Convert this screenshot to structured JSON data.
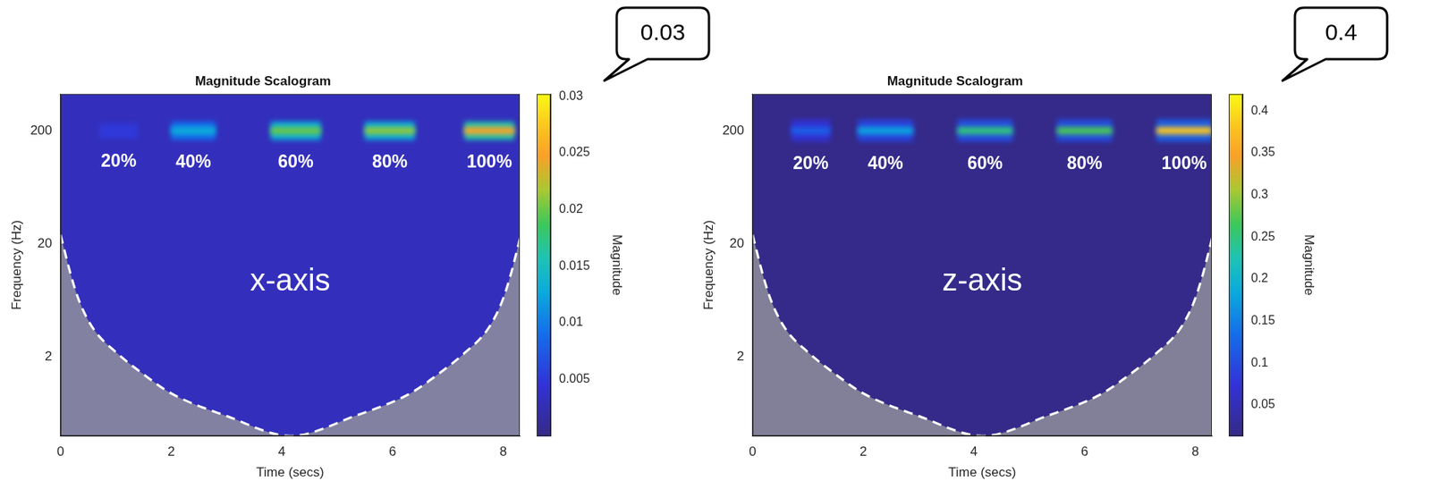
{
  "chart_data": [
    {
      "type": "heatmap",
      "title": "Magnitude Scalogram",
      "x_label": "Time (secs)",
      "y_label": "Frequency (Hz)",
      "annotation": "x-axis",
      "callout": "0.03",
      "log": "y",
      "grid": false,
      "xlim": [
        0,
        8.3
      ],
      "xticks": [
        0,
        2,
        4,
        6,
        8
      ],
      "ylim": [
        0.4,
        420
      ],
      "yticks": [
        2,
        20,
        200
      ],
      "colorbar": {
        "label": "Magnitude",
        "range": [
          0,
          0.0302
        ],
        "ticks": [
          0.005,
          0.01,
          0.015,
          0.02,
          0.025,
          0.03
        ]
      },
      "background": 0.003,
      "bursts": [
        {
          "label": "20%",
          "cells": [
            {
              "t": [
                0.7,
                1.4
              ],
              "f": [
                170,
                230
              ],
              "value": 0.005
            }
          ]
        },
        {
          "label": "40%",
          "cells": [
            {
              "t": [
                2.0,
                2.8
              ],
              "f": [
                165,
                240
              ],
              "value": 0.009
            },
            {
              "t": [
                2.0,
                2.8
              ],
              "f": [
                185,
                215
              ],
              "value": 0.013
            }
          ]
        },
        {
          "label": "60%",
          "cells": [
            {
              "t": [
                3.8,
                4.7
              ],
              "f": [
                165,
                240
              ],
              "value": 0.013
            },
            {
              "t": [
                3.8,
                4.7
              ],
              "f": [
                185,
                215
              ],
              "value": 0.02
            }
          ]
        },
        {
          "label": "80%",
          "cells": [
            {
              "t": [
                5.5,
                6.4
              ],
              "f": [
                165,
                240
              ],
              "value": 0.013
            },
            {
              "t": [
                5.5,
                6.4
              ],
              "f": [
                185,
                215
              ],
              "value": 0.021
            }
          ]
        },
        {
          "label": "100%",
          "cells": [
            {
              "t": [
                7.3,
                8.2
              ],
              "f": [
                165,
                240
              ],
              "value": 0.016
            },
            {
              "t": [
                7.3,
                8.2
              ],
              "f": [
                185,
                215
              ],
              "value": 0.025
            }
          ]
        }
      ],
      "coi": {
        "line_style": "dashed",
        "x": [
          0,
          0.2,
          0.35,
          0.6,
          1,
          1.5,
          2,
          3,
          4.16,
          5.32,
          6.32,
          6.82,
          7.32,
          7.72,
          7.97,
          8.12,
          8.32
        ],
        "y": [
          24,
          10,
          6,
          3.5,
          2.2,
          1.4,
          0.95,
          0.6,
          0.4,
          0.6,
          0.95,
          1.4,
          2.2,
          3.5,
          6,
          10,
          24
        ]
      }
    },
    {
      "type": "heatmap",
      "title": "Magnitude Scalogram",
      "x_label": "Time (secs)",
      "y_label": "Frequency (Hz)",
      "annotation": "z-axis",
      "callout": "0.4",
      "log": "y",
      "grid": false,
      "xlim": [
        0,
        8.3
      ],
      "xticks": [
        0,
        2,
        4,
        6,
        8
      ],
      "ylim": [
        0.4,
        420
      ],
      "yticks": [
        2,
        20,
        200
      ],
      "colorbar": {
        "label": "Magnitude",
        "range": [
          0.013,
          0.42
        ],
        "ticks": [
          0.05,
          0.1,
          0.15,
          0.2,
          0.25,
          0.3,
          0.35,
          0.4
        ]
      },
      "background": 0.015,
      "bursts": [
        {
          "label": "20%",
          "cells": [
            {
              "t": [
                0.7,
                1.4
              ],
              "f": [
                160,
                250
              ],
              "value": 0.07
            },
            {
              "t": [
                0.7,
                1.4
              ],
              "f": [
                185,
                215
              ],
              "value": 0.12
            }
          ]
        },
        {
          "label": "40%",
          "cells": [
            {
              "t": [
                1.9,
                2.9
              ],
              "f": [
                160,
                250
              ],
              "value": 0.09
            },
            {
              "t": [
                1.9,
                2.9
              ],
              "f": [
                185,
                215
              ],
              "value": 0.18
            }
          ]
        },
        {
          "label": "60%",
          "cells": [
            {
              "t": [
                3.7,
                4.7
              ],
              "f": [
                160,
                250
              ],
              "value": 0.1
            },
            {
              "t": [
                3.7,
                4.7
              ],
              "f": [
                185,
                215
              ],
              "value": 0.25
            }
          ]
        },
        {
          "label": "80%",
          "cells": [
            {
              "t": [
                5.5,
                6.5
              ],
              "f": [
                160,
                250
              ],
              "value": 0.1
            },
            {
              "t": [
                5.5,
                6.5
              ],
              "f": [
                185,
                215
              ],
              "value": 0.27
            }
          ]
        },
        {
          "label": "100%",
          "cells": [
            {
              "t": [
                7.3,
                8.3
              ],
              "f": [
                160,
                250
              ],
              "value": 0.12
            },
            {
              "t": [
                7.3,
                8.3
              ],
              "f": [
                185,
                215
              ],
              "value": 0.38
            }
          ]
        }
      ],
      "coi": {
        "line_style": "dashed",
        "x": [
          0,
          0.2,
          0.35,
          0.6,
          1,
          1.5,
          2,
          3,
          4.16,
          5.32,
          6.32,
          6.82,
          7.32,
          7.72,
          7.97,
          8.12,
          8.32
        ],
        "y": [
          24,
          10,
          6,
          3.5,
          2.2,
          1.4,
          0.95,
          0.6,
          0.4,
          0.6,
          0.95,
          1.4,
          2.2,
          3.5,
          6,
          10,
          24
        ]
      }
    }
  ]
}
